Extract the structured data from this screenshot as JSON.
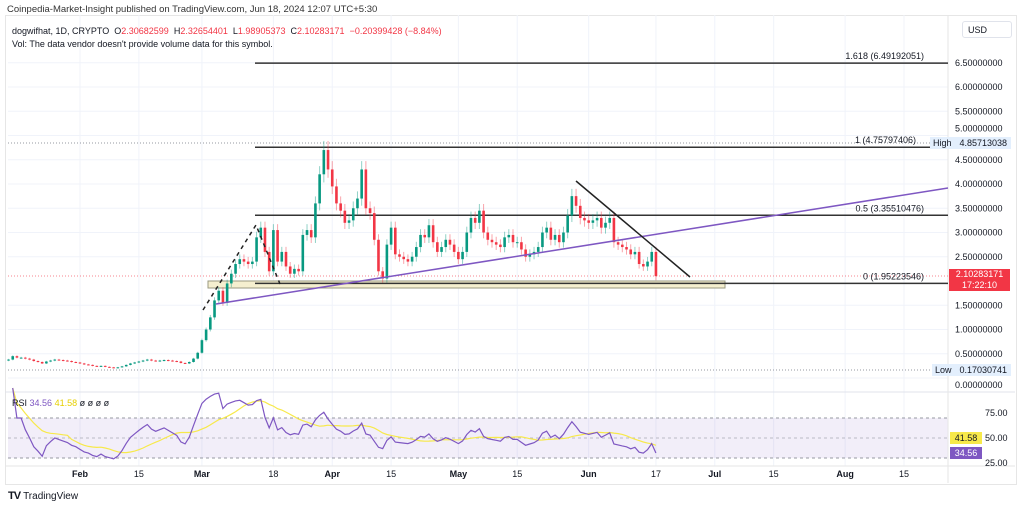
{
  "publisher": "Coinpedia-Market-Insight published on TradingView.com, Jun 18, 2024 12:07 UTC+5:30",
  "legend": {
    "symbol": "dogwifhat, 1D, CRYPTO",
    "o_label": "O",
    "o": "2.30682599",
    "h_label": "H",
    "h": "2.32654401",
    "l_label": "L",
    "l": "1.98905373",
    "c_label": "C",
    "c": "2.10283171",
    "change": "−0.20399428 (−8.84%)"
  },
  "vol_notice": "Vol: The data vendor doesn't provide volume data for this symbol.",
  "currency": "USD",
  "brand": "TradingView",
  "colors": {
    "up": "#089981",
    "down": "#f23645",
    "rsi": "#7e57c2",
    "rsi_ma": "#f7e94a",
    "trendline": "#7e57c2",
    "fib": "#333333"
  },
  "price_tag": {
    "value": "2.10283171",
    "countdown": "17:22:10"
  },
  "high_tag": {
    "label": "High",
    "value": "4.85713038"
  },
  "low_tag": {
    "label": "Low",
    "value": "0.17030741"
  },
  "fib_levels": [
    {
      "label": "1.618 (6.49192051)",
      "price": 6.49192051
    },
    {
      "label": "1 (4.75797406)",
      "price": 4.75797406
    },
    {
      "label": "0.5 (3.35510476)",
      "price": 3.35510476
    },
    {
      "label": "0 (1.95223546)",
      "price": 1.95223546
    }
  ],
  "rsi": {
    "label": "RSI",
    "value": "34.56",
    "ma_value": "41.58",
    "extra": "ø ø ø ø",
    "ticks": [
      "75.00",
      "50.00",
      "25.00"
    ]
  },
  "chart_data": {
    "type": "candlestick",
    "title": "",
    "start_date": "2024-01-15",
    "end_date": "2024-06-17",
    "closes": [
      0.38,
      0.45,
      0.42,
      0.42,
      0.4,
      0.38,
      0.35,
      0.33,
      0.3,
      0.34,
      0.36,
      0.38,
      0.37,
      0.36,
      0.35,
      0.33,
      0.32,
      0.3,
      0.28,
      0.27,
      0.25,
      0.24,
      0.25,
      0.23,
      0.22,
      0.21,
      0.22,
      0.24,
      0.27,
      0.3,
      0.32,
      0.34,
      0.36,
      0.38,
      0.36,
      0.35,
      0.36,
      0.37,
      0.36,
      0.35,
      0.34,
      0.31,
      0.3,
      0.33,
      0.4,
      0.52,
      0.78,
      1.0,
      1.25,
      1.6,
      1.8,
      1.55,
      1.95,
      2.15,
      2.35,
      2.45,
      2.4,
      2.35,
      2.4,
      2.9,
      3.1,
      2.6,
      2.2,
      3.05,
      2.4,
      2.6,
      2.3,
      2.15,
      2.25,
      2.2,
      2.95,
      3.05,
      2.9,
      3.6,
      4.2,
      4.7,
      4.3,
      3.95,
      3.6,
      3.45,
      3.2,
      3.25,
      3.5,
      3.7,
      4.3,
      3.5,
      3.4,
      2.85,
      2.2,
      2.05,
      2.75,
      3.1,
      2.55,
      2.5,
      2.45,
      2.4,
      2.5,
      2.7,
      2.95,
      2.9,
      3.15,
      2.8,
      2.6,
      2.7,
      2.85,
      2.75,
      2.6,
      2.45,
      2.6,
      3.0,
      3.3,
      3.2,
      3.45,
      3.0,
      2.85,
      2.8,
      2.75,
      2.7,
      2.9,
      2.95,
      2.8,
      2.8,
      2.65,
      2.5,
      2.55,
      2.6,
      2.7,
      3.0,
      3.1,
      2.85,
      2.95,
      2.8,
      3.0,
      3.35,
      3.75,
      3.55,
      3.3,
      3.25,
      3.2,
      3.25,
      3.3,
      3.1,
      3.2,
      3.3,
      2.8,
      2.75,
      2.7,
      2.65,
      2.55,
      2.6,
      2.35,
      2.3,
      2.4,
      2.6,
      2.1
    ],
    "y_ticks": [
      "6.50000000",
      "6.00000000",
      "5.50000000",
      "5.00000000",
      "4.50000000",
      "4.00000000",
      "3.50000000",
      "3.00000000",
      "2.50000000",
      "1.50000000",
      "1.00000000",
      "0.50000000",
      "0.00000000"
    ],
    "ylim": [
      0,
      6.8
    ],
    "x_ticks": [
      {
        "label": "Feb",
        "date": "2024-02-01"
      },
      {
        "label": "15",
        "date": "2024-02-15"
      },
      {
        "label": "Mar",
        "date": "2024-03-01"
      },
      {
        "label": "18",
        "date": "2024-03-18"
      },
      {
        "label": "Apr",
        "date": "2024-04-01"
      },
      {
        "label": "15",
        "date": "2024-04-15"
      },
      {
        "label": "May",
        "date": "2024-05-01"
      },
      {
        "label": "15",
        "date": "2024-05-15"
      },
      {
        "label": "Jun",
        "date": "2024-06-01"
      },
      {
        "label": "17",
        "date": "2024-06-17"
      },
      {
        "label": "Jul",
        "date": "2024-07-01"
      },
      {
        "label": "15",
        "date": "2024-07-15"
      },
      {
        "label": "Aug",
        "date": "2024-08-01"
      },
      {
        "label": "15",
        "date": "2024-08-15"
      }
    ],
    "grid": true
  }
}
